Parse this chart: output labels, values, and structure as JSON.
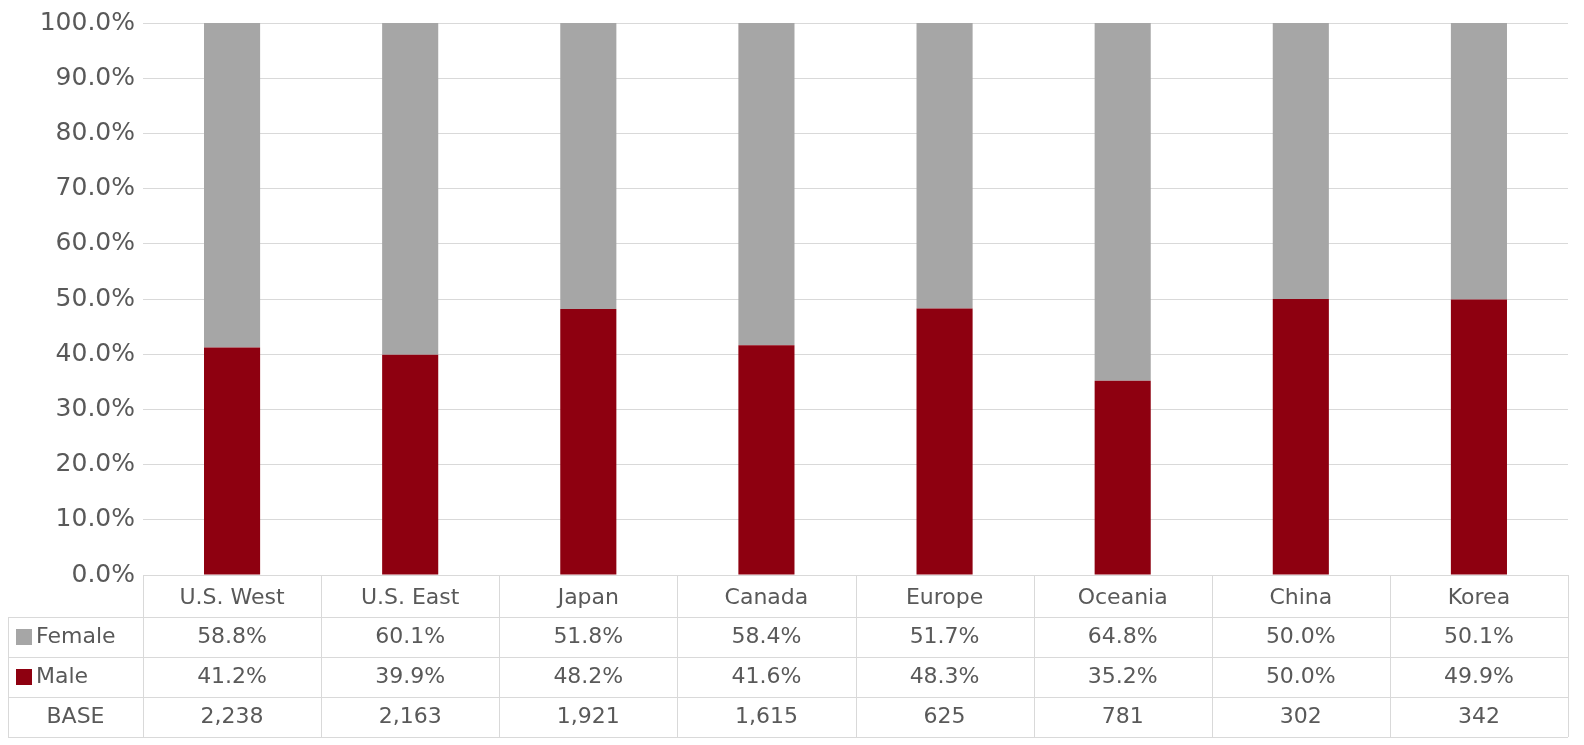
{
  "chart_data": {
    "type": "bar",
    "stacked": true,
    "categories": [
      "U.S. West",
      "U.S. East",
      "Japan",
      "Canada",
      "Europe",
      "Oceania",
      "China",
      "Korea"
    ],
    "series": [
      {
        "name": "Male",
        "color": "#8e0010",
        "values": [
          41.2,
          39.9,
          48.2,
          41.6,
          48.3,
          35.2,
          50.0,
          49.9
        ],
        "value_labels": [
          "41.2%",
          "39.9%",
          "48.2%",
          "41.6%",
          "48.3%",
          "35.2%",
          "50.0%",
          "49.9%"
        ]
      },
      {
        "name": "Female",
        "color": "#a6a6a6",
        "values": [
          58.8,
          60.1,
          51.8,
          58.4,
          51.7,
          64.8,
          50.0,
          50.1
        ],
        "value_labels": [
          "58.8%",
          "60.1%",
          "51.8%",
          "58.4%",
          "51.7%",
          "64.8%",
          "50.0%",
          "50.1%"
        ]
      }
    ],
    "ylim": [
      0,
      100
    ],
    "yticks": [
      {
        "value": 0,
        "label": "0.0%"
      },
      {
        "value": 10,
        "label": "10.0%"
      },
      {
        "value": 20,
        "label": "20.0%"
      },
      {
        "value": 30,
        "label": "30.0%"
      },
      {
        "value": 40,
        "label": "40.0%"
      },
      {
        "value": 50,
        "label": "50.0%"
      },
      {
        "value": 60,
        "label": "60.0%"
      },
      {
        "value": 70,
        "label": "70.0%"
      },
      {
        "value": 80,
        "label": "80.0%"
      },
      {
        "value": 90,
        "label": "90.0%"
      },
      {
        "value": 100,
        "label": "100.0%"
      }
    ],
    "grid": "y",
    "legend": "bottom left",
    "annotations": [
      "BASE",
      "2,238",
      "2,163",
      "1,921",
      "1,615",
      "625",
      "781",
      "302",
      "342"
    ]
  }
}
